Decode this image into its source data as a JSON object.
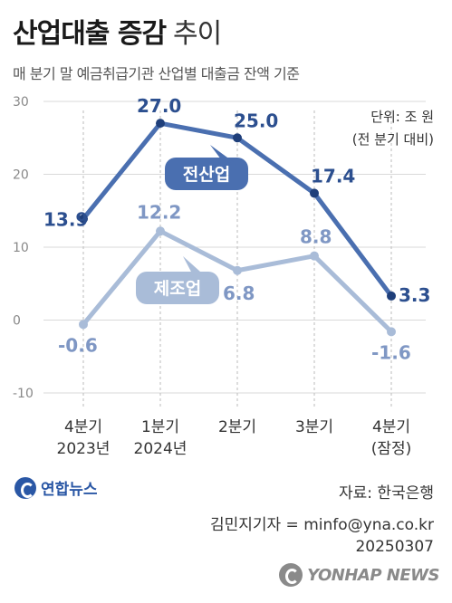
{
  "header": {
    "title_main": "산업대출 증감",
    "title_light": "추이",
    "subtitle": "매 분기 말 예금취급기관 산업별 대출금 잔액 기준"
  },
  "unit": {
    "line1": "단위: 조 원",
    "line2": "(전 분기 대비)"
  },
  "chart_data": {
    "type": "line",
    "categories": [
      [
        "4분기",
        "2023년"
      ],
      [
        "1분기",
        "2024년"
      ],
      [
        "2분기",
        ""
      ],
      [
        "3분기",
        ""
      ],
      [
        "4분기",
        "(잠정)"
      ]
    ],
    "ylim": [
      -10,
      30
    ],
    "yticks": [
      -10,
      0,
      10,
      20,
      30
    ],
    "grid": true,
    "series": [
      {
        "name": "전산업",
        "values": [
          13.9,
          27.0,
          25.0,
          17.4,
          3.3
        ],
        "labels": [
          "13.9",
          "27.0",
          "25.0",
          "17.4",
          "3.3"
        ],
        "color": "#4a6fb0"
      },
      {
        "name": "제조업",
        "values": [
          -0.6,
          12.2,
          6.8,
          8.8,
          -1.6
        ],
        "labels": [
          "-0.6",
          "12.2",
          "6.8",
          "8.8",
          "-1.6"
        ],
        "color": "#a9bcd8"
      }
    ]
  },
  "footer": {
    "logo_text": "연합뉴스",
    "source": "자료: 한국은행",
    "credit_line1": "김민지기자 = minfo@yna.co.kr",
    "credit_line2": "20250307",
    "watermark": "YONHAP NEWS"
  },
  "colors": {
    "primary": "#4a6fb0",
    "secondary": "#a9bcd8",
    "grid": "#d9d9d9"
  }
}
